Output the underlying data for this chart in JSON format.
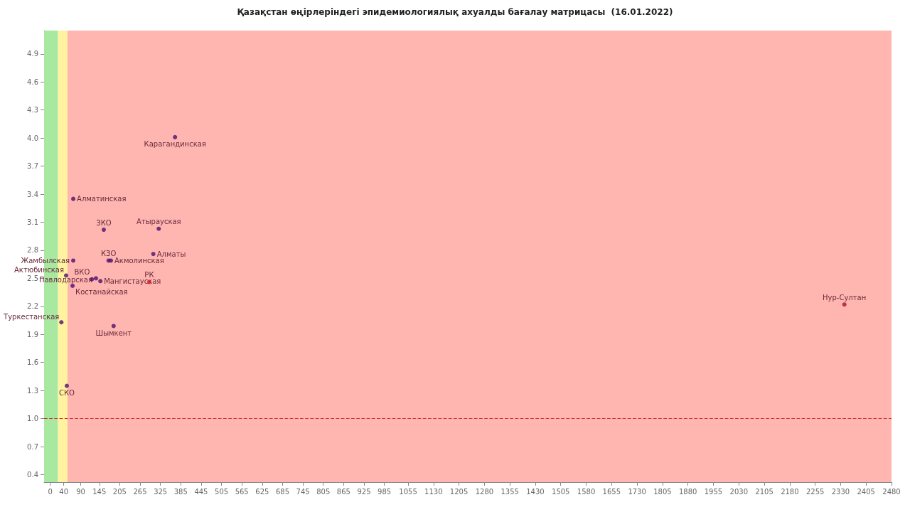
{
  "chart_data": {
    "type": "scatter",
    "title": "Қазақстан өңірлеріндегі эпидемиологиялық ахуалды бағалау матрицасы  (16.01.2022)",
    "series": [
      {
        "x": [
          368,
          68,
          158,
          320,
          304,
          172,
          179,
          68,
          47,
          123,
          135,
          148,
          66,
          292,
          33,
          187,
          49,
          2341
        ],
        "values": [
          4.01,
          3.35,
          3.02,
          3.03,
          2.76,
          2.69,
          2.69,
          2.69,
          2.53,
          2.49,
          2.5,
          2.47,
          2.42,
          2.46,
          2.03,
          1.99,
          1.35,
          2.22
        ],
        "colors": [
          "#4b1070",
          "#4b1070",
          "#4b1070",
          "#4b1070",
          "#4b1070",
          "#4b1070",
          "#4b1070",
          "#4b1070",
          "#4b1070",
          "#4b1070",
          "#4b1070",
          "#4b1070",
          "#4b1070",
          "#d02020",
          "#4b1070",
          "#4b1070",
          "#4b1070",
          "#b01030"
        ]
      }
    ],
    "annotations": [
      {
        "text": "Карагандинская",
        "x": 368,
        "y": 4.01
      },
      {
        "text": "Алматинская",
        "x": 68,
        "y": 3.35
      },
      {
        "text": "ЗКО",
        "x": 158,
        "y": 3.02
      },
      {
        "text": "Атырауская",
        "x": 320,
        "y": 3.03
      },
      {
        "text": "Алматы",
        "x": 304,
        "y": 2.76
      },
      {
        "text": "КЗО",
        "x": 172,
        "y": 2.69
      },
      {
        "text": "Акмолинская",
        "x": 179,
        "y": 2.69
      },
      {
        "text": "Жамбылская",
        "x": 68,
        "y": 2.69
      },
      {
        "text": "Актюбинская",
        "x": 47,
        "y": 2.53
      },
      {
        "text": "ВКО",
        "x": 123,
        "y": 2.49
      },
      {
        "text": "Павлодарская",
        "x": 135,
        "y": 2.5
      },
      {
        "text": "Мангистауская",
        "x": 148,
        "y": 2.47
      },
      {
        "text": "Костанайская",
        "x": 66,
        "y": 2.42
      },
      {
        "text": "РК",
        "x": 292,
        "y": 2.46
      },
      {
        "text": "Туркестанская",
        "x": 33,
        "y": 2.03
      },
      {
        "text": "Шымкент",
        "x": 187,
        "y": 1.99
      },
      {
        "text": "СКО",
        "x": 49,
        "y": 1.35
      },
      {
        "text": "Нур-Султан",
        "x": 2341,
        "y": 2.22
      }
    ],
    "bands": [
      {
        "axis": "x",
        "from": -18,
        "to": 23,
        "color": "#a8e8a0"
      },
      {
        "axis": "x",
        "from": 23,
        "to": 51,
        "color": "#fff3a0"
      },
      {
        "axis": "x",
        "from": 51,
        "to": 2480,
        "color": "#ffb6b0"
      }
    ],
    "ref_lines": [
      {
        "axis": "y",
        "value": 1.0,
        "color": "#d03030",
        "line_style": "dashed"
      }
    ],
    "xlim": [
      -18,
      2480
    ],
    "ylim": [
      0.32,
      5.15
    ],
    "xticks": [
      0,
      40,
      90,
      145,
      205,
      265,
      325,
      385,
      445,
      505,
      565,
      625,
      685,
      745,
      805,
      865,
      925,
      985,
      1055,
      1130,
      1205,
      1280,
      1355,
      1430,
      1505,
      1580,
      1655,
      1730,
      1805,
      1880,
      1955,
      2030,
      2105,
      2180,
      2255,
      2330,
      2405,
      2480
    ],
    "yticks": [
      {
        "value": 0.4,
        "label": "0.4"
      },
      {
        "value": 0.7,
        "label": "0.7"
      },
      {
        "value": 1.0,
        "label": "1.0"
      },
      {
        "value": 1.3,
        "label": "1.3"
      },
      {
        "value": 1.6,
        "label": "1.6"
      },
      {
        "value": 1.9,
        "label": "1.9"
      },
      {
        "value": 2.2,
        "label": "2.2"
      },
      {
        "value": 2.5,
        "label": "2.5"
      },
      {
        "value": 2.8,
        "label": "2.8"
      },
      {
        "value": 3.1,
        "label": "3.1"
      },
      {
        "value": 3.4,
        "label": "3.4"
      },
      {
        "value": 3.7,
        "label": "3.7"
      },
      {
        "value": 4.0,
        "label": "4.0"
      },
      {
        "value": 4.3,
        "label": "4.3"
      },
      {
        "value": 4.6,
        "label": "4.6"
      },
      {
        "value": 4.9,
        "label": "4.9"
      }
    ],
    "grid": false,
    "marker": "circle"
  }
}
